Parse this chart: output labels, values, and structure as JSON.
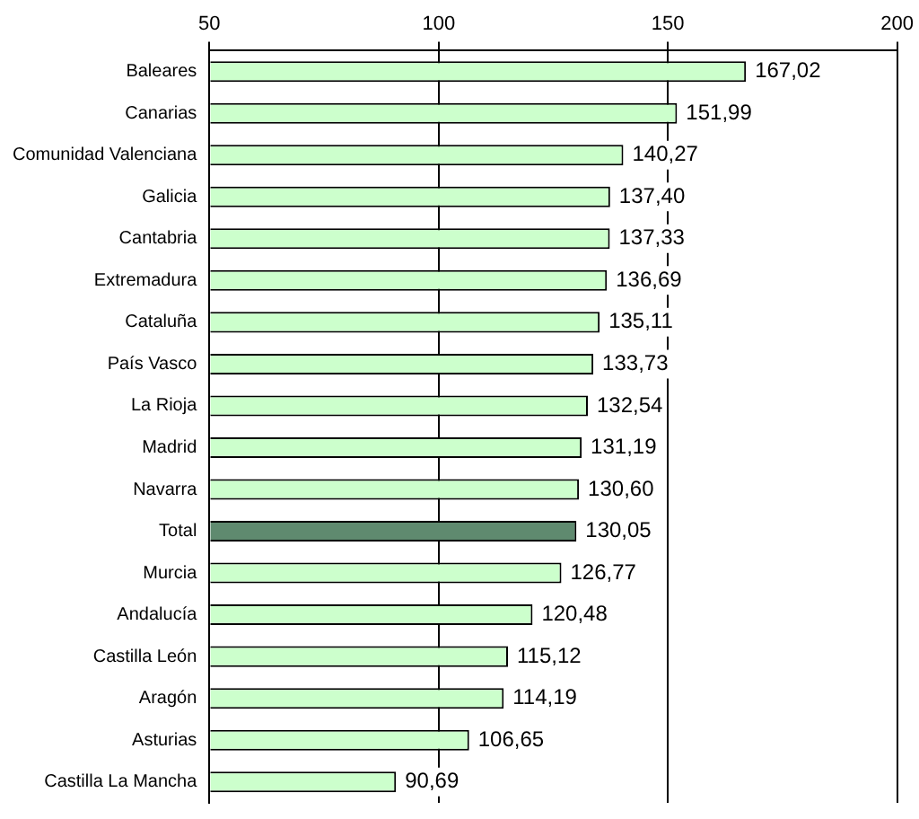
{
  "chart_data": {
    "type": "bar",
    "orientation": "horizontal",
    "categories": [
      "Baleares",
      "Canarias",
      "Comunidad Valenciana",
      "Galicia",
      "Cantabria",
      "Extremadura",
      "Cataluña",
      "País Vasco",
      "La Rioja",
      "Madrid",
      "Navarra",
      "Total",
      "Murcia",
      "Andalucía",
      "Castilla León",
      "Aragón",
      "Asturias",
      "Castilla La Mancha"
    ],
    "values": [
      167.02,
      151.99,
      140.27,
      137.4,
      137.33,
      136.69,
      135.11,
      133.73,
      132.54,
      131.19,
      130.6,
      130.05,
      126.77,
      120.48,
      115.12,
      114.19,
      106.65,
      90.69
    ],
    "value_labels": [
      "167,02",
      "151,99",
      "140,27",
      "137,40",
      "137,33",
      "136,69",
      "135,11",
      "133,73",
      "132,54",
      "131,19",
      "130,60",
      "130,05",
      "126,77",
      "120,48",
      "115,12",
      "114,19",
      "106,65",
      "90,69"
    ],
    "colors": [
      "#ccffcc",
      "#ccffcc",
      "#ccffcc",
      "#ccffcc",
      "#ccffcc",
      "#ccffcc",
      "#ccffcc",
      "#ccffcc",
      "#ccffcc",
      "#ccffcc",
      "#ccffcc",
      "#5f8a6f",
      "#ccffcc",
      "#ccffcc",
      "#ccffcc",
      "#ccffcc",
      "#ccffcc",
      "#ccffcc"
    ],
    "xlim": [
      50,
      200
    ],
    "xticks": [
      50,
      100,
      150,
      200
    ],
    "grid": "x"
  }
}
